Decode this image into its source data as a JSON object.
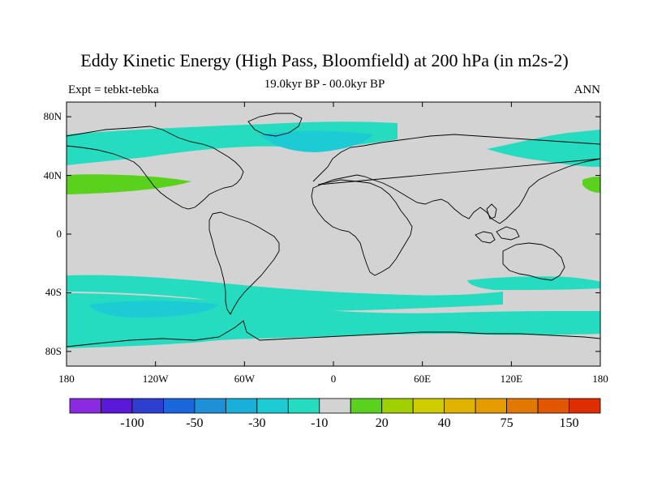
{
  "header": {
    "title": "Eddy Kinetic Energy (High Pass, Bloomfield) at 200 hPa (in m2s-2)",
    "subtitle": "19.0kyr BP - 00.0kyr BP",
    "left_label": "Expt = tebkt-tebka",
    "right_label": "ANN"
  },
  "map": {
    "projection": "cylindrical-equidistant",
    "lon_range": [
      -180,
      180
    ],
    "lat_range": [
      -90,
      90
    ],
    "lat_labels": [
      "80N",
      "40N",
      "0",
      "40S",
      "80S"
    ],
    "lon_labels": [
      "180",
      "120W",
      "60W",
      "0",
      "60E",
      "120E",
      "180"
    ],
    "background_color": "#d3d3d3"
  },
  "colorbar": {
    "colors": [
      "#8a2be2",
      "#5a18d8",
      "#2e3fd0",
      "#1a66dc",
      "#1d90d8",
      "#18afd9",
      "#1ccbd4",
      "#26dcc0",
      "#d3d3d3",
      "#5ad21d",
      "#a0d000",
      "#cfcc00",
      "#dfb300",
      "#e49c00",
      "#e37800",
      "#e25600",
      "#de2e00"
    ],
    "labels": [
      "-100",
      "-50",
      "-30",
      "-10",
      "20",
      "40",
      "75",
      "150"
    ]
  }
}
